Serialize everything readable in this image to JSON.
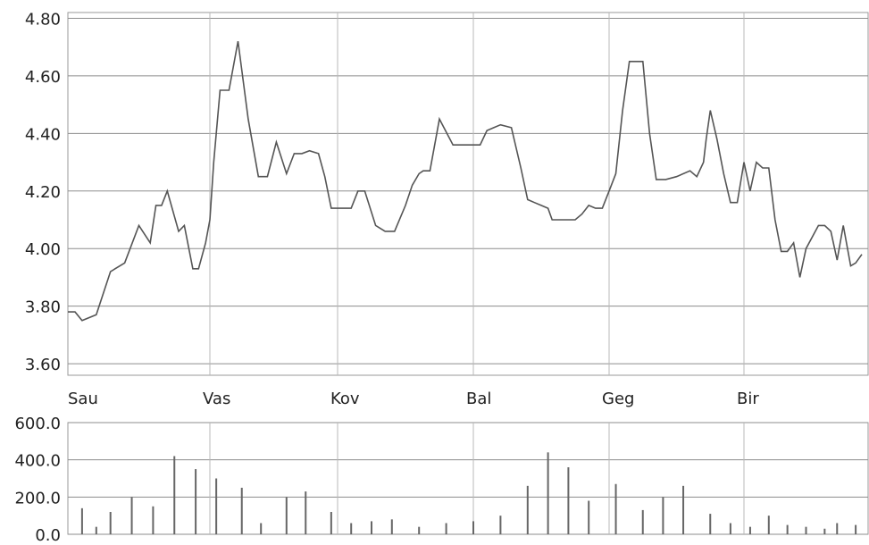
{
  "chart_data": [
    {
      "type": "line",
      "title": "",
      "xlabel": "",
      "ylabel": "",
      "categories": [
        "Sau",
        "Vas",
        "Kov",
        "Bal",
        "Geg",
        "Bir"
      ],
      "ylim": [
        3.56,
        4.82
      ],
      "yticks": [
        "4.80",
        "4.60",
        "4.40",
        "4.20",
        "4.00",
        "3.80",
        "3.60"
      ],
      "grid": true,
      "x": [
        0.0,
        0.05,
        0.1,
        0.2,
        0.3,
        0.4,
        0.5,
        0.58,
        0.62,
        0.66,
        0.7,
        0.78,
        0.82,
        0.88,
        0.92,
        0.97,
        1.0,
        1.03,
        1.08,
        1.15,
        1.22,
        1.3,
        1.38,
        1.45,
        1.52,
        1.6,
        1.66,
        1.72,
        1.78,
        1.85,
        1.9,
        1.95,
        2.0,
        2.05,
        2.1,
        2.15,
        2.2,
        2.28,
        2.35,
        2.42,
        2.5,
        2.55,
        2.6,
        2.63,
        2.68,
        2.75,
        2.85,
        2.95,
        3.0,
        3.05,
        3.1,
        3.15,
        3.2,
        3.28,
        3.35,
        3.4,
        3.45,
        3.5,
        3.55,
        3.58,
        3.62,
        3.7,
        3.75,
        3.8,
        3.85,
        3.9,
        3.95,
        4.0,
        4.05,
        4.1,
        4.15,
        4.2,
        4.25,
        4.3,
        4.35,
        4.42,
        4.5,
        4.6,
        4.65,
        4.7,
        4.72,
        4.75,
        4.8,
        4.85,
        4.9,
        4.95,
        5.0,
        5.05,
        5.1,
        5.15,
        5.2,
        5.25,
        5.3,
        5.35,
        5.4,
        5.45,
        5.5,
        5.6,
        5.65,
        5.7,
        5.75,
        5.8,
        5.86,
        5.9,
        5.95
      ],
      "series": [
        {
          "values": [
            3.78,
            3.78,
            3.75,
            3.77,
            3.92,
            3.95,
            4.08,
            4.02,
            4.15,
            4.15,
            4.2,
            4.06,
            4.08,
            3.93,
            3.93,
            4.02,
            4.1,
            4.3,
            4.55,
            4.55,
            4.72,
            4.45,
            4.25,
            4.25,
            4.37,
            4.26,
            4.33,
            4.33,
            4.34,
            4.33,
            4.25,
            4.14,
            4.14,
            4.14,
            4.14,
            4.2,
            4.2,
            4.08,
            4.06,
            4.06,
            4.15,
            4.22,
            4.26,
            4.27,
            4.27,
            4.45,
            4.36,
            4.36,
            4.36,
            4.36,
            4.41,
            4.42,
            4.43,
            4.42,
            4.28,
            4.17,
            4.16,
            4.15,
            4.14,
            4.1,
            4.1,
            4.1,
            4.1,
            4.12,
            4.15,
            4.14,
            4.14,
            4.2,
            4.26,
            4.48,
            4.65,
            4.65,
            4.65,
            4.4,
            4.24,
            4.24,
            4.25,
            4.27,
            4.25,
            4.3,
            4.38,
            4.48,
            4.38,
            4.26,
            4.16,
            4.16,
            4.3,
            4.2,
            4.3,
            4.28,
            4.28,
            4.1,
            3.99,
            3.99,
            4.02,
            3.9,
            4.0,
            4.08,
            4.08,
            4.06,
            3.96,
            4.08,
            3.94,
            3.95,
            3.98
          ]
        }
      ]
    },
    {
      "type": "bar",
      "title": "",
      "xlabel": "",
      "ylabel": "",
      "ylim": [
        0,
        600
      ],
      "yticks": [
        "600.0",
        "400.0",
        "200.0",
        "0.0"
      ],
      "grid": true,
      "x": [
        0.1,
        0.2,
        0.3,
        0.45,
        0.6,
        0.75,
        0.9,
        1.05,
        1.25,
        1.4,
        1.6,
        1.75,
        1.95,
        2.1,
        2.25,
        2.4,
        2.6,
        2.8,
        3.0,
        3.2,
        3.4,
        3.55,
        3.7,
        3.85,
        4.05,
        4.25,
        4.4,
        4.55,
        4.75,
        4.9,
        5.05,
        5.2,
        5.35,
        5.5,
        5.65,
        5.75,
        5.9
      ],
      "series": [
        {
          "values": [
            140,
            40,
            120,
            200,
            150,
            420,
            350,
            300,
            250,
            60,
            200,
            230,
            120,
            60,
            70,
            80,
            40,
            60,
            70,
            100,
            260,
            440,
            360,
            180,
            270,
            130,
            200,
            260,
            110,
            60,
            40,
            100,
            50,
            40,
            30,
            60,
            50
          ]
        }
      ]
    }
  ]
}
